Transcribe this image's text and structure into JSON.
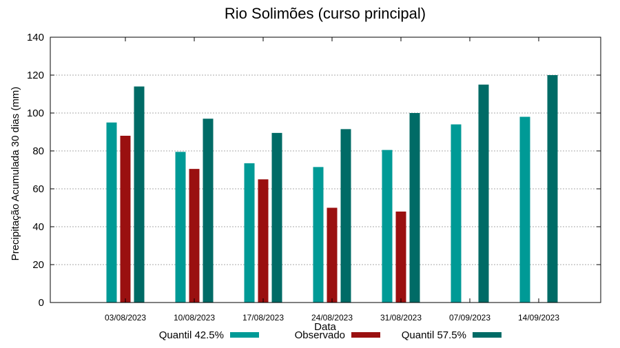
{
  "chart_data": {
    "type": "bar",
    "title": "Rio Solimões (curso principal)",
    "xlabel": "Data",
    "ylabel": "Precipitação Acumulada 30 dias (mm)",
    "ylim": [
      0,
      140
    ],
    "yticks": [
      0,
      20,
      40,
      60,
      80,
      100,
      120,
      140
    ],
    "grid": true,
    "legend_position": "bottom",
    "categories": [
      "03/08/2023",
      "10/08/2023",
      "17/08/2023",
      "24/08/2023",
      "31/08/2023",
      "07/09/2023",
      "14/09/2023"
    ],
    "series": [
      {
        "name": "Quantil 42.5%",
        "color": "#009a96",
        "values": [
          95,
          79.5,
          73.5,
          71.5,
          80.5,
          94,
          98
        ]
      },
      {
        "name": "Observado",
        "color": "#9a1010",
        "values": [
          88,
          70.5,
          65,
          50,
          48,
          null,
          null
        ]
      },
      {
        "name": "Quantil 57.5%",
        "color": "#006b66",
        "values": [
          114,
          97,
          89.5,
          91.5,
          100,
          115,
          120
        ]
      }
    ]
  }
}
